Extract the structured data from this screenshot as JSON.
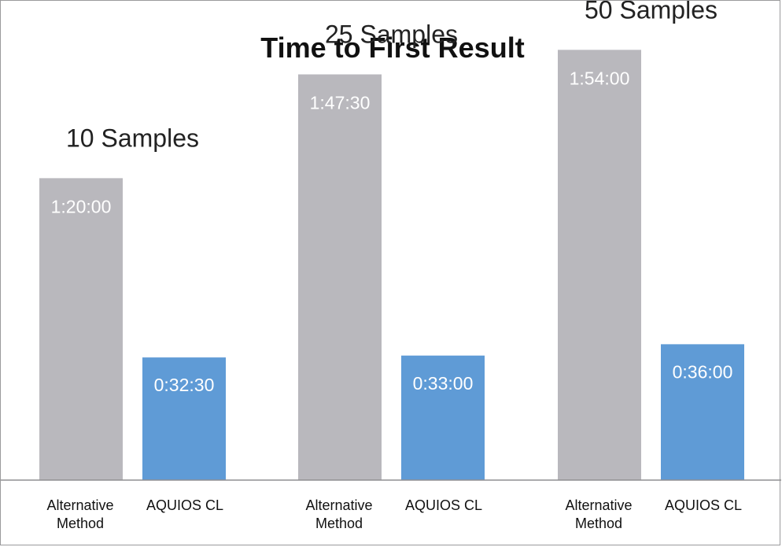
{
  "chart_data": {
    "type": "bar",
    "title": "Time to First Result",
    "xlabel": "",
    "ylabel": "",
    "ylim": [
      0,
      7620
    ],
    "grid": false,
    "groups": [
      {
        "label": "10 Samples",
        "bars": [
          {
            "category": [
              "Alternative",
              "Method"
            ],
            "seconds": 4800,
            "value_label": "1:20:00",
            "color": "#b9b8bd"
          },
          {
            "category": [
              "AQUIOS CL"
            ],
            "seconds": 1950,
            "value_label": "0:32:30",
            "color": "#5f9bd6"
          }
        ]
      },
      {
        "label": "25 Samples",
        "bars": [
          {
            "category": [
              "Alternative",
              "Method"
            ],
            "seconds": 6450,
            "value_label": "1:47:30",
            "color": "#b9b8bd"
          },
          {
            "category": [
              "AQUIOS CL"
            ],
            "seconds": 1980,
            "value_label": "0:33:00",
            "color": "#5f9bd6"
          }
        ]
      },
      {
        "label": "50 Samples",
        "bars": [
          {
            "category": [
              "Alternative",
              "Method"
            ],
            "seconds": 6840,
            "value_label": "1:54:00",
            "color": "#b9b8bd"
          },
          {
            "category": [
              "AQUIOS CL"
            ],
            "seconds": 2160,
            "value_label": "0:36:00",
            "color": "#5f9bd6"
          }
        ]
      }
    ]
  }
}
